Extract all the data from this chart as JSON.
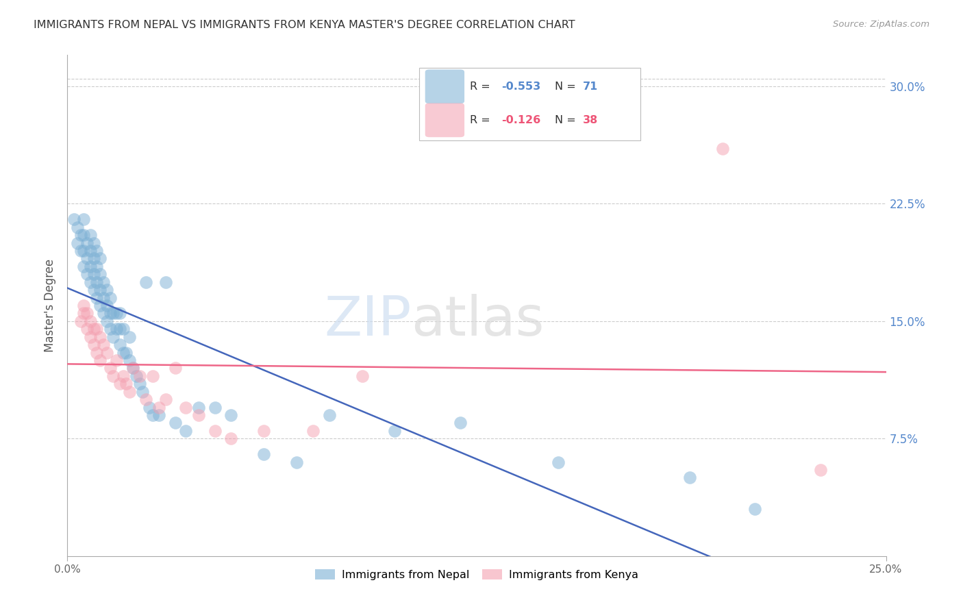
{
  "title": "IMMIGRANTS FROM NEPAL VS IMMIGRANTS FROM KENYA MASTER'S DEGREE CORRELATION CHART",
  "source": "Source: ZipAtlas.com",
  "ylabel": "Master's Degree",
  "ytick_labels": [
    "30.0%",
    "22.5%",
    "15.0%",
    "7.5%"
  ],
  "ytick_values": [
    0.3,
    0.225,
    0.15,
    0.075
  ],
  "xlim": [
    0.0,
    0.25
  ],
  "ylim": [
    0.0,
    0.32
  ],
  "legend_nepal_R": "-0.553",
  "legend_nepal_N": "71",
  "legend_kenya_R": "-0.126",
  "legend_kenya_N": "38",
  "nepal_color": "#7BAFD4",
  "kenya_color": "#F4A0B0",
  "regression_nepal_color": "#4466BB",
  "regression_kenya_color": "#EE6688",
  "nepal_x": [
    0.002,
    0.003,
    0.003,
    0.004,
    0.004,
    0.005,
    0.005,
    0.005,
    0.005,
    0.006,
    0.006,
    0.006,
    0.007,
    0.007,
    0.007,
    0.007,
    0.008,
    0.008,
    0.008,
    0.008,
    0.009,
    0.009,
    0.009,
    0.009,
    0.01,
    0.01,
    0.01,
    0.01,
    0.011,
    0.011,
    0.011,
    0.012,
    0.012,
    0.012,
    0.013,
    0.013,
    0.013,
    0.014,
    0.014,
    0.015,
    0.015,
    0.016,
    0.016,
    0.016,
    0.017,
    0.017,
    0.018,
    0.019,
    0.019,
    0.02,
    0.021,
    0.022,
    0.023,
    0.024,
    0.025,
    0.026,
    0.028,
    0.03,
    0.033,
    0.036,
    0.04,
    0.045,
    0.05,
    0.06,
    0.07,
    0.08,
    0.1,
    0.12,
    0.15,
    0.19,
    0.21
  ],
  "nepal_y": [
    0.215,
    0.2,
    0.21,
    0.195,
    0.205,
    0.185,
    0.195,
    0.205,
    0.215,
    0.18,
    0.19,
    0.2,
    0.175,
    0.185,
    0.195,
    0.205,
    0.17,
    0.18,
    0.19,
    0.2,
    0.165,
    0.175,
    0.185,
    0.195,
    0.16,
    0.17,
    0.18,
    0.19,
    0.155,
    0.165,
    0.175,
    0.15,
    0.16,
    0.17,
    0.145,
    0.155,
    0.165,
    0.14,
    0.155,
    0.145,
    0.155,
    0.135,
    0.145,
    0.155,
    0.13,
    0.145,
    0.13,
    0.125,
    0.14,
    0.12,
    0.115,
    0.11,
    0.105,
    0.175,
    0.095,
    0.09,
    0.09,
    0.175,
    0.085,
    0.08,
    0.095,
    0.095,
    0.09,
    0.065,
    0.06,
    0.09,
    0.08,
    0.085,
    0.06,
    0.05,
    0.03
  ],
  "kenya_x": [
    0.004,
    0.005,
    0.005,
    0.006,
    0.006,
    0.007,
    0.007,
    0.008,
    0.008,
    0.009,
    0.009,
    0.01,
    0.01,
    0.011,
    0.012,
    0.013,
    0.014,
    0.015,
    0.016,
    0.017,
    0.018,
    0.019,
    0.02,
    0.022,
    0.024,
    0.026,
    0.028,
    0.03,
    0.033,
    0.036,
    0.04,
    0.045,
    0.05,
    0.06,
    0.075,
    0.09,
    0.2,
    0.23
  ],
  "kenya_y": [
    0.15,
    0.155,
    0.16,
    0.145,
    0.155,
    0.14,
    0.15,
    0.135,
    0.145,
    0.13,
    0.145,
    0.125,
    0.14,
    0.135,
    0.13,
    0.12,
    0.115,
    0.125,
    0.11,
    0.115,
    0.11,
    0.105,
    0.12,
    0.115,
    0.1,
    0.115,
    0.095,
    0.1,
    0.12,
    0.095,
    0.09,
    0.08,
    0.075,
    0.08,
    0.08,
    0.115,
    0.26,
    0.055
  ]
}
